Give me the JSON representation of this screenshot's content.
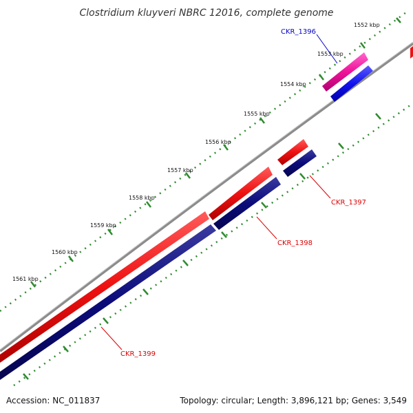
{
  "title": "Clostridium kluyveri NBRC 12016, complete genome",
  "footer": {
    "accession": "Accession: NC_011837",
    "summary": "Topology: circular; Length: 3,896,121 bp; Genes: 3,549"
  },
  "colors": {
    "backbone": "#8c8c8c",
    "tick": "#2e8b2e",
    "cds_red": "#ee1111",
    "cds_navy": "#0b0b7a",
    "cds_pink": "#ee1199",
    "cds_blue": "#1111ee",
    "label_red": "#dd0000",
    "label_blue": "#0000cc"
  },
  "ticks": [
    {
      "label": "1552 kbp"
    },
    {
      "label": "1553 kbp"
    },
    {
      "label": "1554 kbp"
    },
    {
      "label": "1555 kbp"
    },
    {
      "label": "1556 kbp"
    },
    {
      "label": "1557 kbp"
    },
    {
      "label": "1558 kbp"
    },
    {
      "label": "1559 kbp"
    },
    {
      "label": "1560 kbp"
    },
    {
      "label": "1561 kbp"
    }
  ],
  "genes": [
    {
      "label": "CKR_1396",
      "color": "blue"
    },
    {
      "label": "CKR_1397",
      "color": "red"
    },
    {
      "label": "CKR_1398",
      "color": "red"
    },
    {
      "label": "CKR_1399",
      "color": "red"
    }
  ]
}
